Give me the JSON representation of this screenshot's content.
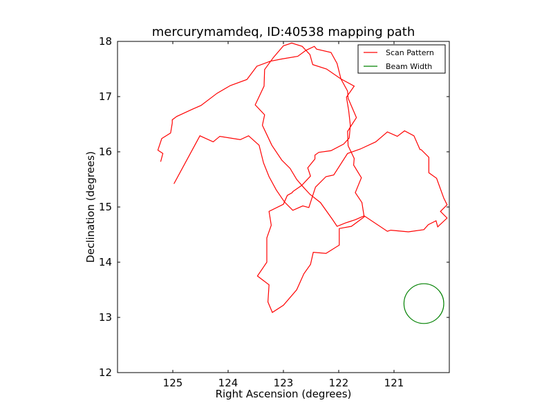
{
  "chart_data": {
    "type": "line",
    "title": "mercurymamdeq, ID:40538 mapping path",
    "xlabel": "Right Ascension (degrees)",
    "ylabel": "Declination (degrees)",
    "xlim": [
      126.0,
      120.0
    ],
    "ylim": [
      12.0,
      18.0
    ],
    "x_inverted": true,
    "xticks": [
      125,
      124,
      123,
      122,
      121
    ],
    "xtick_labels": [
      "125",
      "124",
      "123",
      "122",
      "121"
    ],
    "yticks": [
      12,
      13,
      14,
      15,
      16,
      17,
      18
    ],
    "ytick_labels": [
      "12",
      "13",
      "14",
      "15",
      "16",
      "17",
      "18"
    ],
    "grid": false,
    "legend_placement": "top-right",
    "series": [
      {
        "name": "Scan Pattern",
        "color": "#ff0000",
        "x": [
          124.98,
          124.51,
          124.27,
          124.15,
          123.78,
          123.63,
          123.44,
          123.36,
          123.26,
          123.13,
          122.98,
          122.83,
          122.65,
          122.54,
          122.42,
          122.23,
          122.09,
          121.84,
          121.61,
          121.33,
          121.12,
          120.94,
          120.81,
          120.64,
          120.53,
          120.51,
          120.37,
          120.37,
          120.23,
          120.1,
          120.04,
          120.16,
          120.04,
          120.21,
          120.24,
          120.38,
          120.46,
          120.74,
          121.06,
          121.12,
          121.54,
          121.7,
          121.88,
          122.03,
          122.11,
          122.33,
          122.52,
          122.64,
          122.76,
          122.88,
          123.03,
          123.21,
          123.38,
          123.34,
          123.51,
          123.35,
          123.34,
          123.18,
          123.0,
          122.85,
          122.66,
          122.52,
          122.47,
          122.22,
          121.96,
          121.84,
          121.83,
          121.68,
          121.84,
          121.83,
          121.72,
          121.73,
          121.59,
          121.7,
          121.58,
          121.54,
          121.77,
          121.99,
          121.99,
          122.23,
          122.46,
          122.51,
          122.63,
          122.76,
          123.0,
          123.2,
          123.28,
          123.26,
          123.47,
          123.3,
          123.3,
          123.22,
          123.26,
          123.0,
          122.93,
          122.84,
          122.83,
          122.67,
          122.51,
          122.56,
          122.43,
          122.43,
          122.36,
          122.14,
          121.91,
          121.81,
          121.79,
          121.82,
          121.86,
          121.72,
          121.96,
          122.03,
          122.14,
          122.4,
          122.44,
          122.59,
          122.74,
          123.04,
          123.24,
          123.48,
          123.66,
          123.96,
          124.2,
          124.49,
          124.65,
          124.93,
          125.01,
          125.01,
          125.04,
          125.2,
          125.27,
          125.18,
          125.22
        ],
        "y": [
          15.42,
          16.29,
          16.18,
          16.28,
          16.22,
          16.29,
          16.12,
          15.8,
          15.55,
          15.31,
          15.09,
          14.94,
          15.02,
          14.99,
          15.36,
          15.55,
          15.58,
          15.97,
          16.05,
          16.18,
          16.36,
          16.28,
          16.38,
          16.29,
          16.04,
          16.04,
          15.9,
          15.62,
          15.52,
          15.16,
          15.04,
          14.92,
          14.8,
          14.64,
          14.75,
          14.68,
          14.59,
          14.55,
          14.58,
          14.56,
          14.84,
          14.77,
          14.71,
          14.65,
          14.77,
          15.08,
          15.23,
          15.36,
          15.5,
          15.7,
          15.85,
          16.12,
          16.48,
          16.67,
          16.85,
          17.19,
          17.49,
          17.71,
          17.92,
          17.97,
          17.91,
          17.76,
          17.58,
          17.5,
          17.32,
          17.1,
          16.97,
          16.62,
          16.37,
          16.11,
          15.88,
          15.76,
          15.53,
          15.26,
          15.08,
          14.82,
          14.65,
          14.61,
          14.31,
          14.16,
          14.18,
          13.96,
          13.79,
          13.5,
          13.22,
          13.09,
          13.28,
          13.59,
          13.75,
          14.0,
          14.44,
          14.67,
          14.92,
          15.05,
          15.21,
          15.26,
          15.28,
          15.39,
          15.56,
          15.71,
          15.87,
          15.94,
          15.99,
          16.02,
          16.14,
          16.25,
          16.48,
          16.75,
          16.99,
          17.19,
          17.32,
          17.6,
          17.8,
          17.86,
          17.91,
          17.84,
          17.73,
          17.68,
          17.64,
          17.55,
          17.31,
          17.2,
          17.06,
          16.84,
          16.77,
          16.64,
          16.58,
          16.52,
          16.34,
          16.24,
          16.03,
          15.97,
          15.82
        ]
      },
      {
        "name": "Beam Width",
        "color": "#008000",
        "shape": "circle",
        "center": [
          120.46,
          13.25
        ],
        "radius_deg": 0.36
      }
    ]
  }
}
